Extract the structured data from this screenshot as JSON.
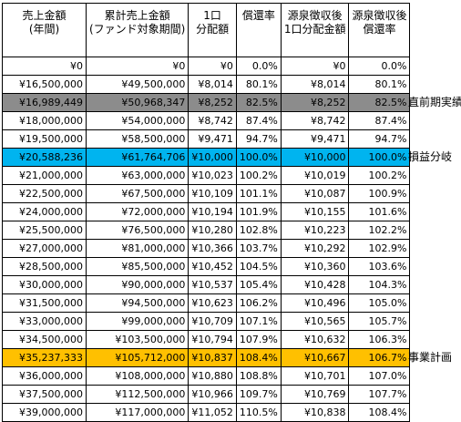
{
  "headers": [
    "売上金額\n(年間)",
    "累計売上金額\n(ファンド対象期間)",
    "1口\n分配額",
    "償還率",
    "源泉徴収後\n1口分配金額",
    "源泉徴収後\n償還率"
  ],
  "rows": [
    [
      "¥0",
      "¥0",
      "¥0",
      "0.0%",
      "¥0",
      "0.0%"
    ],
    [
      "¥16,500,000",
      "¥49,500,000",
      "¥8,014",
      "80.1%",
      "¥8,014",
      "80.1%"
    ],
    [
      "¥16,989,449",
      "¥50,968,347",
      "¥8,252",
      "82.5%",
      "¥8,252",
      "82.5%"
    ],
    [
      "¥18,000,000",
      "¥54,000,000",
      "¥8,742",
      "87.4%",
      "¥8,742",
      "87.4%"
    ],
    [
      "¥19,500,000",
      "¥58,500,000",
      "¥9,471",
      "94.7%",
      "¥9,471",
      "94.7%"
    ],
    [
      "¥20,588,236",
      "¥61,764,706",
      "¥10,000",
      "100.0%",
      "¥10,000",
      "100.0%"
    ],
    [
      "¥21,000,000",
      "¥63,000,000",
      "¥10,023",
      "100.2%",
      "¥10,019",
      "100.2%"
    ],
    [
      "¥22,500,000",
      "¥67,500,000",
      "¥10,109",
      "101.1%",
      "¥10,087",
      "100.9%"
    ],
    [
      "¥24,000,000",
      "¥72,000,000",
      "¥10,194",
      "101.9%",
      "¥10,155",
      "101.6%"
    ],
    [
      "¥25,500,000",
      "¥76,500,000",
      "¥10,280",
      "102.8%",
      "¥10,223",
      "102.2%"
    ],
    [
      "¥27,000,000",
      "¥81,000,000",
      "¥10,366",
      "103.7%",
      "¥10,292",
      "102.9%"
    ],
    [
      "¥28,500,000",
      "¥85,500,000",
      "¥10,452",
      "104.5%",
      "¥10,360",
      "103.6%"
    ],
    [
      "¥30,000,000",
      "¥90,000,000",
      "¥10,537",
      "105.4%",
      "¥10,428",
      "104.3%"
    ],
    [
      "¥31,500,000",
      "¥94,500,000",
      "¥10,623",
      "106.2%",
      "¥10,496",
      "105.0%"
    ],
    [
      "¥33,000,000",
      "¥99,000,000",
      "¥10,709",
      "107.1%",
      "¥10,565",
      "105.7%"
    ],
    [
      "¥34,500,000",
      "¥103,500,000",
      "¥10,794",
      "107.9%",
      "¥10,632",
      "106.3%"
    ],
    [
      "¥35,237,333",
      "¥105,712,000",
      "¥10,837",
      "108.4%",
      "¥10,667",
      "106.7%"
    ],
    [
      "¥36,000,000",
      "¥108,000,000",
      "¥10,880",
      "108.8%",
      "¥10,701",
      "107.0%"
    ],
    [
      "¥37,500,000",
      "¥112,500,000",
      "¥10,966",
      "109.7%",
      "¥10,769",
      "107.7%"
    ],
    [
      "¥39,000,000",
      "¥117,000,000",
      "¥11,052",
      "110.5%",
      "¥10,838",
      "108.4%"
    ]
  ],
  "highlights": [
    {
      "row": 2,
      "color": "#8c8c8c",
      "label": "直前期実績"
    },
    {
      "row": 5,
      "color": "#00b4ef",
      "label": "損益分岐"
    },
    {
      "row": 16,
      "color": "#ffc000",
      "label": "事業計画"
    }
  ]
}
